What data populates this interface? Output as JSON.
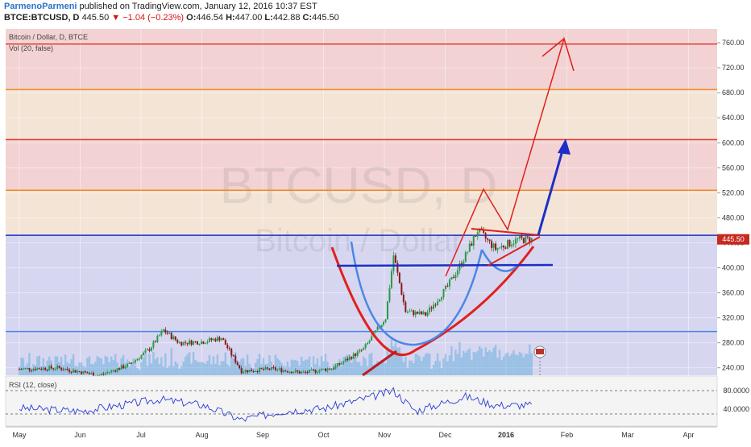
{
  "header": {
    "author": "ParmenoParmeni",
    "published": "published on TradingView.com, January 12, 2016 10:37 EST",
    "symbol": "BTCE:BTCUSD, D",
    "last": "445.50",
    "change_icon": "triangle-down-icon",
    "change": "−1.04 (−0.23%)",
    "open_label": "O:",
    "open": "446.54",
    "high_label": "H:",
    "high": "447.00",
    "low_label": "L:",
    "low": "442.88",
    "close_label": "C:",
    "close": "445.50"
  },
  "chart_data": {
    "type": "candlestick",
    "legend": "Bitcoin / Dollar, D, BTCE",
    "volume_label": "Vol (20, false)",
    "watermark_symbol": "BTCUSD, D",
    "watermark_name": "Bitcoin / Dollar",
    "y_ticks": [
      240,
      280,
      320,
      360,
      400,
      440,
      480,
      520,
      560,
      600,
      640,
      680,
      720,
      760
    ],
    "y_tick_labels": [
      "240.00",
      "280.00",
      "320.00",
      "360.00",
      "400.00",
      "440.00",
      "480.00",
      "520.00",
      "560.00",
      "600.00",
      "640.00",
      "680.00",
      "720.00",
      "760.00"
    ],
    "ylim": [
      228,
      782
    ],
    "x_axis": [
      "May",
      "Jun",
      "Jul",
      "Aug",
      "Sep",
      "Oct",
      "Nov",
      "Dec",
      "2016",
      "Feb",
      "Mar",
      "Apr"
    ],
    "last_price_label": "445.50",
    "last_price": 445.5,
    "horizontal_levels": [
      {
        "price": 758,
        "color": "#e0302c"
      },
      {
        "price": 685,
        "color": "#f08a1e"
      },
      {
        "price": 605,
        "color": "#e0302c"
      },
      {
        "price": 524,
        "color": "#f08a1e"
      },
      {
        "price": 452,
        "color": "#1c2fc8"
      },
      {
        "price": 298,
        "color": "#4a86e8"
      }
    ],
    "zones": [
      {
        "from": 685,
        "to": 782,
        "color": "#f2d2d2"
      },
      {
        "from": 605,
        "to": 685,
        "color": "#f3e4d6"
      },
      {
        "from": 524,
        "to": 605,
        "color": "#f2d2d2"
      },
      {
        "from": 452,
        "to": 524,
        "color": "#f3e4d6"
      },
      {
        "from": 228,
        "to": 452,
        "color": "#d6d6f0"
      }
    ],
    "price_path": [
      [
        "2015-05-01",
        238
      ],
      [
        "2015-05-20",
        240
      ],
      [
        "2015-06-10",
        228
      ],
      [
        "2015-06-25",
        245
      ],
      [
        "2015-07-05",
        270
      ],
      [
        "2015-07-12",
        300
      ],
      [
        "2015-07-20",
        280
      ],
      [
        "2015-08-01",
        282
      ],
      [
        "2015-08-10",
        288
      ],
      [
        "2015-08-20",
        235
      ],
      [
        "2015-09-05",
        238
      ],
      [
        "2015-09-20",
        232
      ],
      [
        "2015-10-05",
        240
      ],
      [
        "2015-10-20",
        270
      ],
      [
        "2015-10-31",
        320
      ],
      [
        "2015-11-04",
        420
      ],
      [
        "2015-11-10",
        330
      ],
      [
        "2015-11-20",
        325
      ],
      [
        "2015-12-01",
        370
      ],
      [
        "2015-12-10",
        420
      ],
      [
        "2015-12-16",
        460
      ],
      [
        "2015-12-25",
        430
      ],
      [
        "2016-01-05",
        445
      ],
      [
        "2016-01-12",
        445.5
      ]
    ],
    "rsi_label": "RSI (12, close)",
    "rsi_ticks": [
      "80.0000",
      "40.0000"
    ],
    "rsi_path": [
      [
        "2015-05-01",
        50
      ],
      [
        "2015-06-01",
        45
      ],
      [
        "2015-07-10",
        65
      ],
      [
        "2015-08-01",
        55
      ],
      [
        "2015-08-20",
        30
      ],
      [
        "2015-09-10",
        45
      ],
      [
        "2015-10-01",
        50
      ],
      [
        "2015-10-25",
        70
      ],
      [
        "2015-11-04",
        80
      ],
      [
        "2015-11-15",
        45
      ],
      [
        "2015-12-10",
        70
      ],
      [
        "2015-12-25",
        55
      ],
      [
        "2016-01-12",
        55
      ]
    ],
    "colors": {
      "up": "#2b9a47",
      "down": "#8a1a1a",
      "volume": "#6aaedc",
      "rsi": "#2a3cd6"
    }
  }
}
